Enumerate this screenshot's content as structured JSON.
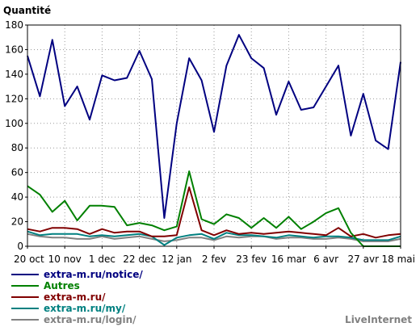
{
  "chart_data": {
    "type": "line",
    "ylabel": "Quantité",
    "ylim": [
      0,
      180
    ],
    "yticks": [
      0,
      20,
      40,
      60,
      80,
      100,
      120,
      140,
      160,
      180
    ],
    "grid": true,
    "legend_placement": "bottom-left",
    "x_tick_labels": [
      "20 oct",
      "10 nov",
      "1 dec",
      "22 dec",
      "12 jan",
      "2 fev",
      "23 fev",
      "16 mar",
      "6 avr",
      "27 avr",
      "18 mai"
    ],
    "series": [
      {
        "name": "extra-m.ru/notice/",
        "color": "#000080",
        "values": [
          155,
          122,
          168,
          114,
          130,
          103,
          139,
          135,
          137,
          159,
          136,
          23,
          100,
          153,
          135,
          93,
          147,
          172,
          153,
          145,
          107,
          134,
          111,
          113,
          130,
          147,
          90,
          124,
          86,
          79,
          150
        ]
      },
      {
        "name": "Autres",
        "color": "#008000",
        "values": [
          49,
          42,
          28,
          37,
          21,
          33,
          33,
          32,
          17,
          19,
          17,
          13,
          16,
          61,
          22,
          18,
          26,
          23,
          15,
          23,
          15,
          24,
          14,
          20,
          27,
          31,
          11,
          0,
          0,
          0,
          0
        ]
      },
      {
        "name": "extra-m.ru/",
        "color": "#800000",
        "values": [
          14,
          12,
          15,
          15,
          14,
          10,
          14,
          11,
          12,
          12,
          8,
          8,
          9,
          48,
          13,
          9,
          13,
          10,
          11,
          10,
          11,
          12,
          11,
          10,
          9,
          15,
          8,
          10,
          7,
          9,
          10
        ]
      },
      {
        "name": "extra-m.ru/my/",
        "color": "#008080",
        "values": [
          12,
          9,
          10,
          10,
          10,
          8,
          9,
          8,
          9,
          10,
          8,
          1,
          7,
          9,
          10,
          6,
          11,
          9,
          9,
          8,
          7,
          9,
          8,
          7,
          8,
          8,
          7,
          5,
          5,
          5,
          8
        ]
      },
      {
        "name": "extra-m.ru/login/",
        "color": "#808080",
        "values": [
          10,
          8,
          7,
          7,
          6,
          6,
          8,
          6,
          7,
          8,
          6,
          4,
          5,
          7,
          7,
          5,
          8,
          7,
          8,
          8,
          6,
          7,
          7,
          6,
          6,
          7,
          6,
          4,
          4,
          4,
          6
        ]
      }
    ]
  },
  "watermark": "LiveInternet"
}
